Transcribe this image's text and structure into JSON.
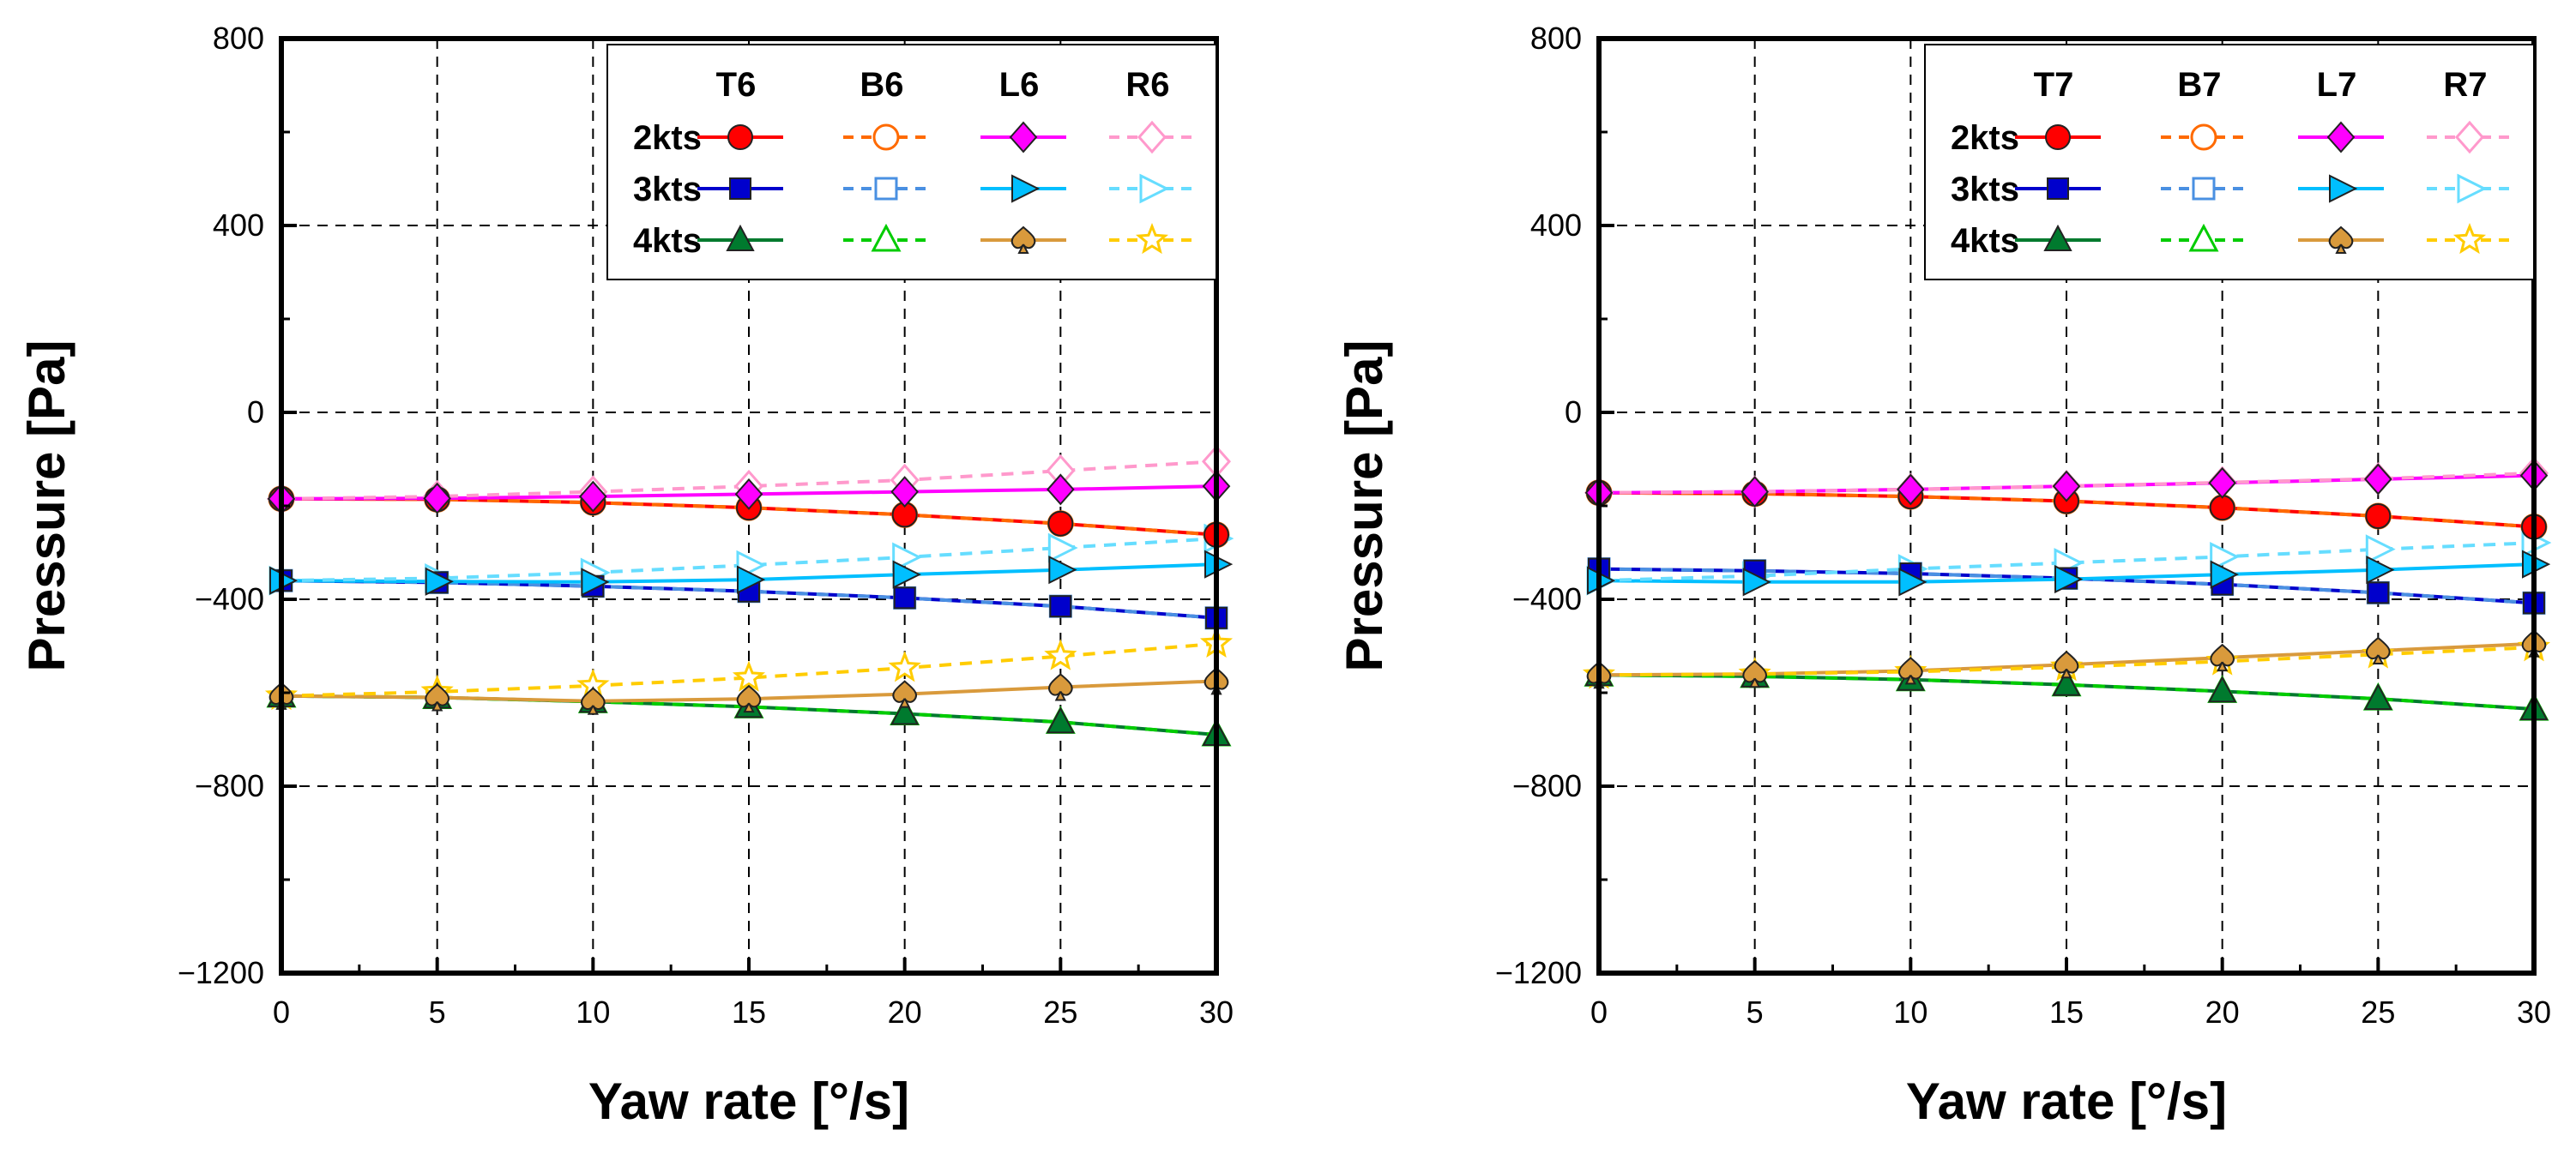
{
  "chart_data": [
    {
      "type": "line",
      "xlabel": "Yaw rate [°/s]",
      "ylabel": "Pressure [Pa]",
      "xlim": [
        0,
        30
      ],
      "ylim": [
        -1200,
        800
      ],
      "xticks": [
        0,
        5,
        10,
        15,
        20,
        25,
        30
      ],
      "yticks": [
        800,
        400,
        0,
        -400,
        -800,
        -1200
      ],
      "xtick_labels": [
        "0",
        "5",
        "10",
        "15",
        "20",
        "25",
        "30"
      ],
      "ytick_labels": [
        "800",
        "400",
        "0",
        "−400",
        "−800",
        "−1200"
      ],
      "grid": true,
      "legend_position": "top-right",
      "legend_columns": [
        "T6",
        "B6",
        "L6",
        "R6"
      ],
      "legend_rows": [
        "2kts",
        "3kts",
        "4kts"
      ],
      "x": [
        0,
        5,
        10,
        15,
        20,
        25,
        30
      ],
      "series": [
        {
          "name": "T6 2kts",
          "color": "#ff0000",
          "marker": "circle",
          "filled": true,
          "dashed": false,
          "values": [
            -185,
            -186,
            -193,
            -204,
            -219,
            -238,
            -262
          ]
        },
        {
          "name": "T6 3kts",
          "color": "#0000cc",
          "marker": "square",
          "filled": true,
          "dashed": false,
          "values": [
            -360,
            -364,
            -372,
            -383,
            -397,
            -415,
            -440
          ]
        },
        {
          "name": "T6 4kts",
          "color": "#007a2e",
          "marker": "triangle",
          "filled": true,
          "dashed": false,
          "values": [
            -607,
            -610,
            -619,
            -630,
            -645,
            -663,
            -690
          ]
        },
        {
          "name": "B6 2kts",
          "color": "#ff6a00",
          "marker": "circle",
          "filled": false,
          "dashed": true,
          "values": [
            -185,
            -186,
            -193,
            -204,
            -219,
            -238,
            -262
          ]
        },
        {
          "name": "B6 3kts",
          "color": "#4a90e2",
          "marker": "square",
          "filled": false,
          "dashed": true,
          "values": [
            -360,
            -364,
            -372,
            -383,
            -397,
            -415,
            -440
          ]
        },
        {
          "name": "B6 4kts",
          "color": "#00cc00",
          "marker": "triangle",
          "filled": false,
          "dashed": true,
          "values": [
            -607,
            -610,
            -619,
            -630,
            -645,
            -663,
            -690
          ]
        },
        {
          "name": "L6 2kts",
          "color": "#ff00ff",
          "marker": "diamond",
          "filled": true,
          "dashed": false,
          "values": [
            -185,
            -184,
            -180,
            -175,
            -170,
            -165,
            -158
          ]
        },
        {
          "name": "L6 3kts",
          "color": "#00bfff",
          "marker": "triangle-right",
          "filled": true,
          "dashed": false,
          "values": [
            -360,
            -362,
            -363,
            -358,
            -347,
            -337,
            -325
          ]
        },
        {
          "name": "L6 4kts",
          "color": "#d99a3c",
          "marker": "spade",
          "filled": true,
          "dashed": false,
          "values": [
            -607,
            -610,
            -618,
            -613,
            -603,
            -588,
            -575
          ]
        },
        {
          "name": "R6 2kts",
          "color": "#ff99cc",
          "marker": "diamond",
          "filled": false,
          "dashed": true,
          "values": [
            -185,
            -180,
            -170,
            -158,
            -145,
            -125,
            -105
          ]
        },
        {
          "name": "R6 3kts",
          "color": "#66ddff",
          "marker": "triangle-right",
          "filled": false,
          "dashed": true,
          "values": [
            -360,
            -355,
            -343,
            -327,
            -310,
            -290,
            -270
          ]
        },
        {
          "name": "R6 4kts",
          "color": "#ffcc00",
          "marker": "star",
          "filled": false,
          "dashed": true,
          "values": [
            -607,
            -598,
            -585,
            -568,
            -547,
            -522,
            -495
          ]
        }
      ]
    },
    {
      "type": "line",
      "xlabel": "Yaw rate [°/s]",
      "ylabel": "Pressure [Pa]",
      "xlim": [
        0,
        30
      ],
      "ylim": [
        -1200,
        800
      ],
      "xticks": [
        0,
        5,
        10,
        15,
        20,
        25,
        30
      ],
      "yticks": [
        800,
        400,
        0,
        -400,
        -800,
        -1200
      ],
      "xtick_labels": [
        "0",
        "5",
        "10",
        "15",
        "20",
        "25",
        "30"
      ],
      "ytick_labels": [
        "800",
        "400",
        "0",
        "−400",
        "−800",
        "−1200"
      ],
      "grid": true,
      "legend_position": "top-right",
      "legend_columns": [
        "T7",
        "B7",
        "L7",
        "R7"
      ],
      "legend_rows": [
        "2kts",
        "3kts",
        "4kts"
      ],
      "x": [
        0,
        5,
        10,
        15,
        20,
        25,
        30
      ],
      "series": [
        {
          "name": "T7 2kts",
          "color": "#ff0000",
          "marker": "circle",
          "filled": true,
          "dashed": false,
          "values": [
            -172,
            -174,
            -180,
            -190,
            -204,
            -222,
            -245
          ]
        },
        {
          "name": "T7 3kts",
          "color": "#0000cc",
          "marker": "square",
          "filled": true,
          "dashed": false,
          "values": [
            -335,
            -339,
            -345,
            -355,
            -368,
            -386,
            -408
          ]
        },
        {
          "name": "T7 4kts",
          "color": "#007a2e",
          "marker": "triangle",
          "filled": true,
          "dashed": false,
          "values": [
            -562,
            -565,
            -572,
            -583,
            -597,
            -613,
            -635
          ]
        },
        {
          "name": "B7 2kts",
          "color": "#ff6a00",
          "marker": "circle",
          "filled": false,
          "dashed": true,
          "values": [
            -172,
            -174,
            -180,
            -190,
            -204,
            -222,
            -245
          ]
        },
        {
          "name": "B7 3kts",
          "color": "#4a90e2",
          "marker": "square",
          "filled": false,
          "dashed": true,
          "values": [
            -335,
            -339,
            -345,
            -355,
            -368,
            -386,
            -408
          ]
        },
        {
          "name": "B7 4kts",
          "color": "#00cc00",
          "marker": "triangle",
          "filled": false,
          "dashed": true,
          "values": [
            -562,
            -565,
            -572,
            -583,
            -597,
            -613,
            -635
          ]
        },
        {
          "name": "L7 2kts",
          "color": "#ff00ff",
          "marker": "diamond",
          "filled": true,
          "dashed": false,
          "values": [
            -172,
            -170,
            -165,
            -158,
            -151,
            -143,
            -135
          ]
        },
        {
          "name": "L7 3kts",
          "color": "#00bfff",
          "marker": "triangle-right",
          "filled": true,
          "dashed": false,
          "values": [
            -360,
            -363,
            -363,
            -357,
            -347,
            -337,
            -325
          ]
        },
        {
          "name": "L7 4kts",
          "color": "#d99a3c",
          "marker": "spade",
          "filled": true,
          "dashed": false,
          "values": [
            -562,
            -560,
            -553,
            -540,
            -525,
            -510,
            -495
          ]
        },
        {
          "name": "R7 2kts",
          "color": "#ff99cc",
          "marker": "diamond",
          "filled": false,
          "dashed": true,
          "values": [
            -172,
            -170,
            -165,
            -158,
            -150,
            -142,
            -130
          ]
        },
        {
          "name": "R7 3kts",
          "color": "#66ddff",
          "marker": "triangle-right",
          "filled": false,
          "dashed": true,
          "values": [
            -360,
            -350,
            -335,
            -322,
            -309,
            -293,
            -279
          ]
        },
        {
          "name": "R7 4kts",
          "color": "#ffcc00",
          "marker": "star",
          "filled": false,
          "dashed": true,
          "values": [
            -562,
            -560,
            -555,
            -545,
            -533,
            -518,
            -503
          ]
        }
      ]
    }
  ]
}
